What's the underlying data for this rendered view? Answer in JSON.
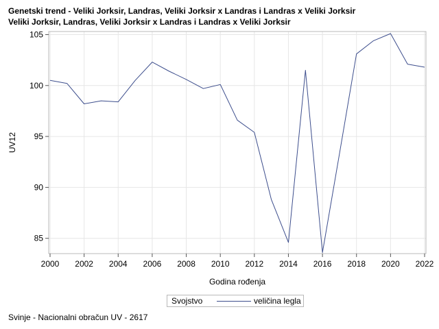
{
  "title_lines": [
    "Genetski trend - Veliki Jorksir, Landras, Veliki Jorksir x Landras i Landras x Veliki Jorksir",
    "Veliki Jorksir, Landras, Veliki Jorksir x Landras i Landras x Veliki Jorksir"
  ],
  "legend": {
    "title": "Svojstvo",
    "entry": "veličina legla"
  },
  "footnote": "Svinje - Nacionalni obračun UV - 2617",
  "colors": {
    "line": "#3c4d8c",
    "grid": "#e6e6e6",
    "axis": "#b8b8b8"
  },
  "chart_data": {
    "type": "line",
    "xlabel": "Godina rođenja",
    "ylabel": "UV12",
    "xlim": [
      2000,
      2022
    ],
    "ylim": [
      83.5,
      105.3
    ],
    "xticks": [
      2000,
      2002,
      2004,
      2006,
      2008,
      2010,
      2012,
      2014,
      2016,
      2018,
      2020,
      2022
    ],
    "yticks": [
      85,
      90,
      95,
      100,
      105
    ],
    "grid": true,
    "legend_position": "bottom",
    "series": [
      {
        "name": "veličina legla",
        "x": [
          2000,
          2001,
          2002,
          2003,
          2004,
          2005,
          2006,
          2007,
          2008,
          2009,
          2010,
          2011,
          2012,
          2013,
          2014,
          2015,
          2016,
          2017,
          2018,
          2019,
          2020,
          2021,
          2022
        ],
        "y": [
          100.5,
          100.2,
          98.2,
          98.5,
          98.4,
          100.5,
          102.3,
          101.4,
          100.6,
          99.7,
          100.1,
          96.6,
          95.4,
          88.8,
          84.6,
          101.5,
          83.6,
          93.3,
          103.1,
          104.4,
          105.1,
          102.1,
          101.8
        ]
      }
    ]
  }
}
